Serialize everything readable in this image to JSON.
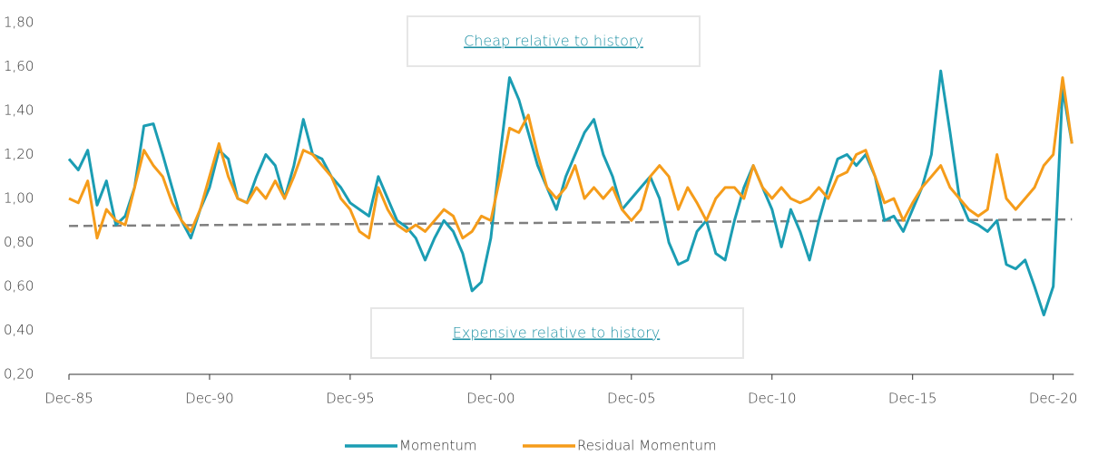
{
  "chart_data": {
    "type": "line",
    "annotations": [
      "Cheap relative to history",
      "Expensive relative to history"
    ],
    "categories": [
      "Dec-85",
      null,
      null,
      null,
      null,
      null,
      null,
      null,
      null,
      null,
      null,
      null,
      null,
      null,
      null,
      "Dec-90",
      null,
      null,
      null,
      null,
      null,
      null,
      null,
      null,
      null,
      null,
      null,
      null,
      null,
      null,
      "Dec-95",
      null,
      null,
      null,
      null,
      null,
      null,
      null,
      null,
      null,
      null,
      null,
      null,
      null,
      null,
      "Dec-00",
      null,
      null,
      null,
      null,
      null,
      null,
      null,
      null,
      null,
      null,
      null,
      null,
      null,
      null,
      "Dec-05",
      null,
      null,
      null,
      null,
      null,
      null,
      null,
      null,
      null,
      null,
      null,
      null,
      null,
      null,
      "Dec-10",
      null,
      null,
      null,
      null,
      null,
      null,
      null,
      null,
      null,
      null,
      null,
      null,
      null,
      null,
      "Dec-15",
      null,
      null,
      null,
      null,
      null,
      null,
      null,
      null,
      null,
      null,
      null,
      null,
      null,
      null,
      "Dec-20",
      null,
      null
    ],
    "series": [
      {
        "name": "Momentum",
        "color": "#1b9db3",
        "values": [
          1.18,
          1.13,
          1.22,
          0.97,
          1.08,
          0.88,
          0.92,
          1.05,
          1.33,
          1.34,
          1.2,
          1.05,
          0.9,
          0.82,
          0.95,
          1.05,
          1.22,
          1.18,
          1.0,
          0.98,
          1.1,
          1.2,
          1.15,
          1.0,
          1.15,
          1.36,
          1.2,
          1.18,
          1.1,
          1.05,
          0.98,
          0.95,
          0.92,
          1.1,
          1.0,
          0.9,
          0.87,
          0.82,
          0.72,
          0.82,
          0.9,
          0.85,
          0.75,
          0.58,
          0.62,
          0.82,
          1.2,
          1.55,
          1.45,
          1.3,
          1.15,
          1.05,
          0.95,
          1.1,
          1.2,
          1.3,
          1.36,
          1.2,
          1.1,
          0.95,
          1.0,
          1.05,
          1.1,
          1.0,
          0.8,
          0.7,
          0.72,
          0.85,
          0.9,
          0.75,
          0.72,
          0.9,
          1.05,
          1.15,
          1.05,
          0.95,
          0.78,
          0.95,
          0.85,
          0.72,
          0.9,
          1.05,
          1.18,
          1.2,
          1.15,
          1.2,
          1.1,
          0.9,
          0.92,
          0.85,
          0.95,
          1.05,
          1.2,
          1.58,
          1.3,
          1.0,
          0.9,
          0.88,
          0.85,
          0.9,
          0.7,
          0.68,
          0.72,
          0.6,
          0.47,
          0.6,
          1.5,
          1.25
        ]
      },
      {
        "name": "Residual Momentum",
        "color": "#f59c1a",
        "values": [
          1.0,
          0.98,
          1.08,
          0.82,
          0.95,
          0.9,
          0.88,
          1.05,
          1.22,
          1.15,
          1.1,
          0.98,
          0.9,
          0.85,
          0.95,
          1.1,
          1.25,
          1.1,
          1.0,
          0.98,
          1.05,
          1.0,
          1.08,
          1.0,
          1.1,
          1.22,
          1.2,
          1.15,
          1.1,
          1.0,
          0.95,
          0.85,
          0.82,
          1.05,
          0.95,
          0.88,
          0.85,
          0.88,
          0.85,
          0.9,
          0.95,
          0.92,
          0.82,
          0.85,
          0.92,
          0.9,
          1.1,
          1.32,
          1.3,
          1.38,
          1.2,
          1.05,
          1.0,
          1.05,
          1.15,
          1.0,
          1.05,
          1.0,
          1.05,
          0.95,
          0.9,
          0.95,
          1.1,
          1.15,
          1.1,
          0.95,
          1.05,
          0.98,
          0.9,
          1.0,
          1.05,
          1.05,
          1.0,
          1.15,
          1.05,
          1.0,
          1.05,
          1.0,
          0.98,
          1.0,
          1.05,
          1.0,
          1.1,
          1.12,
          1.2,
          1.22,
          1.1,
          0.98,
          1.0,
          0.9,
          0.98,
          1.05,
          1.1,
          1.15,
          1.05,
          1.0,
          0.95,
          0.92,
          0.95,
          1.2,
          1.0,
          0.95,
          1.0,
          1.05,
          1.15,
          1.2,
          1.55,
          1.25
        ]
      }
    ],
    "reference_line": {
      "values": [
        0.875,
        0.905
      ],
      "color": "#7f7f7f",
      "dashed": true
    },
    "ylim": [
      0.2,
      1.8
    ],
    "yticks": [
      {
        "value": 0.2,
        "label": "0,20"
      },
      {
        "value": 0.4,
        "label": "0,40"
      },
      {
        "value": 0.6,
        "label": "0,60"
      },
      {
        "value": 0.8,
        "label": "0,80"
      },
      {
        "value": 1.0,
        "label": "1,00"
      },
      {
        "value": 1.2,
        "label": "1,20"
      },
      {
        "value": 1.4,
        "label": "1,40"
      },
      {
        "value": 1.6,
        "label": "1,60"
      },
      {
        "value": 1.8,
        "label": "1,80"
      }
    ],
    "grid": false,
    "legend": "bottom"
  }
}
